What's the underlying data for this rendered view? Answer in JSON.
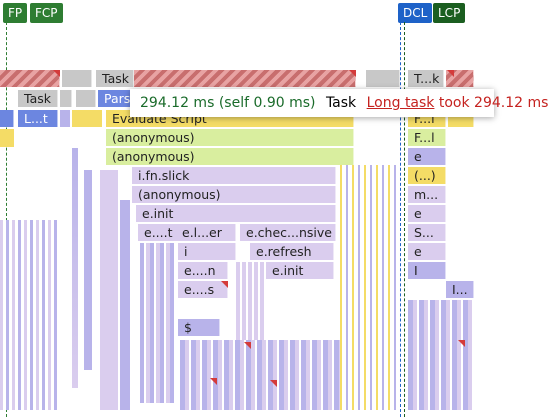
{
  "markers": {
    "fp": "FP",
    "fcp": "FCP",
    "dcl": "DCL",
    "lcp": "LCP"
  },
  "colors": {
    "fp": "#2e7d32",
    "fcp": "#2e7d32",
    "dcl": "#1e62c8",
    "lcp": "#1b5e20"
  },
  "flame": {
    "task_main": "Task",
    "task_right": "T...k",
    "task_left": "Task",
    "parse": "Parse",
    "left_call": "L...t",
    "evaluate_script": "Evaluate Script",
    "right_col": [
      "F...l",
      "F...l",
      "e",
      "(...)",
      "m...",
      "e",
      "S...",
      "e",
      "I",
      "I..."
    ],
    "anon_1": "(anonymous)",
    "anon_2": "(anonymous)",
    "fn_slick": "i.fn.slick",
    "anon_3": "(anonymous)",
    "e_init": "e.init",
    "et": "e....t",
    "eler": "e.l...er",
    "check": "e.chec...nsive",
    "i_call": "i",
    "refresh": "e.refresh",
    "en": "e....n",
    "init2": "e.init",
    "es": "e....s",
    "dollar": "$"
  },
  "tooltip": {
    "time": "294.12 ms (self 0.90 ms)",
    "name": "Task",
    "warning_link": "Long task",
    "warning_text": "took 294.12 ms"
  }
}
